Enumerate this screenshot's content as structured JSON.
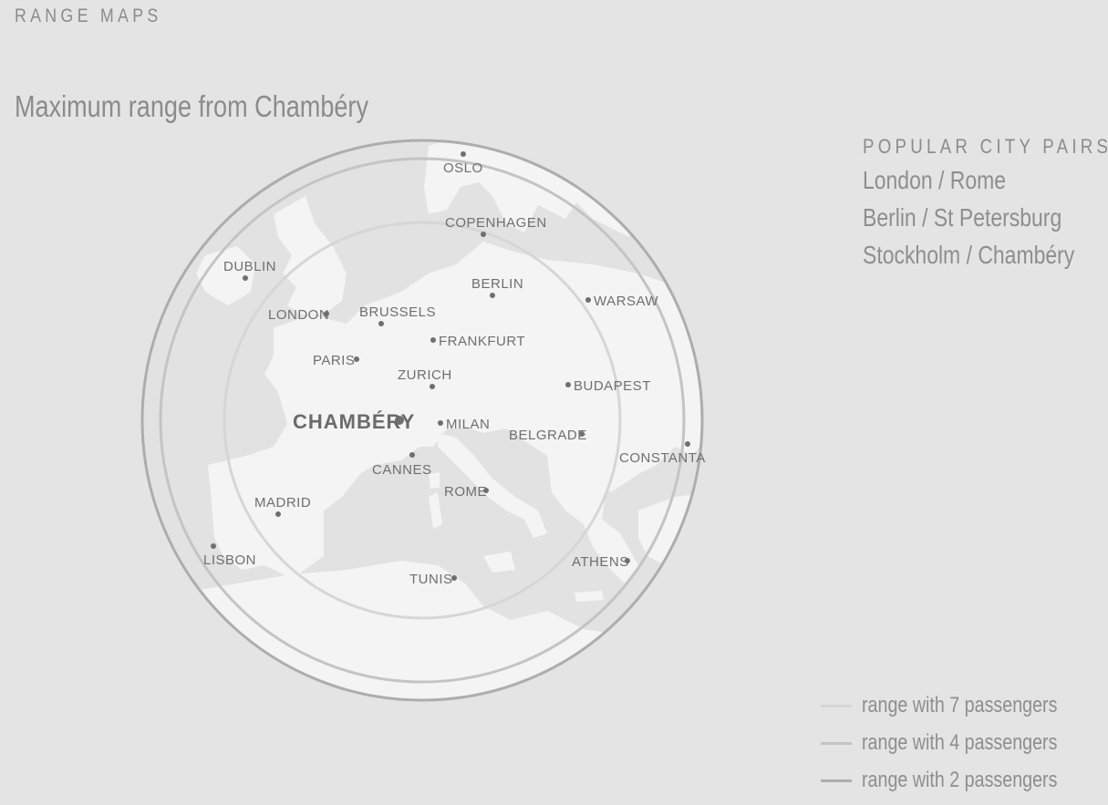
{
  "header": {
    "section_label": "RANGE MAPS"
  },
  "map": {
    "title": "Maximum range from Chambéry",
    "origin": {
      "name": "CHAMBÉRY"
    },
    "cities": [
      {
        "name": "OSLO"
      },
      {
        "name": "COPENHAGEN"
      },
      {
        "name": "DUBLIN"
      },
      {
        "name": "BERLIN"
      },
      {
        "name": "WARSAW"
      },
      {
        "name": "LONDON"
      },
      {
        "name": "BRUSSELS"
      },
      {
        "name": "FRANKFURT"
      },
      {
        "name": "PARIS"
      },
      {
        "name": "ZURICH"
      },
      {
        "name": "BUDAPEST"
      },
      {
        "name": "MILAN"
      },
      {
        "name": "BELGRADE"
      },
      {
        "name": "CONSTANTA"
      },
      {
        "name": "CANNES"
      },
      {
        "name": "ROME"
      },
      {
        "name": "MADRID"
      },
      {
        "name": "LISBON"
      },
      {
        "name": "ATHENS"
      },
      {
        "name": "TUNIS"
      }
    ],
    "colors": {
      "land": "#ffffff",
      "sea": "#e4e4e4",
      "dot": "#6f6f6f"
    }
  },
  "popular_pairs": {
    "heading": "POPULAR CITY PAIRS",
    "items": [
      "London / Rome",
      "Berlin / St Petersburg",
      "Stockholm / Chambéry"
    ]
  },
  "legend": {
    "items": [
      {
        "label": "range with 7 passengers",
        "color": "#d6d6d6"
      },
      {
        "label": "range with 4 passengers",
        "color": "#c4c4c4"
      },
      {
        "label": "range with 2 passengers",
        "color": "#adadad"
      }
    ]
  }
}
